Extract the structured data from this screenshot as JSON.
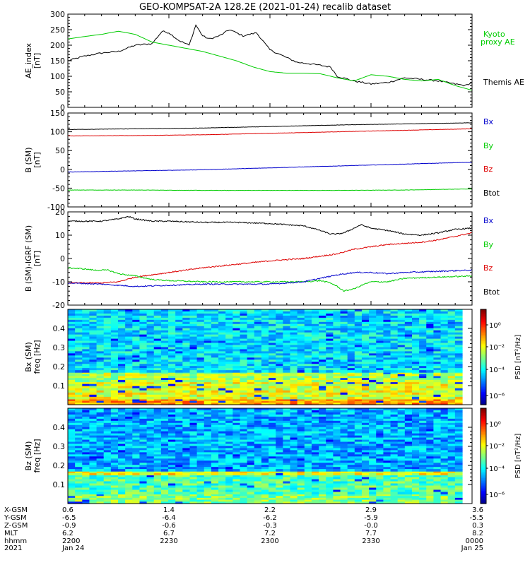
{
  "title": "GEO-KOMPSAT-2A 128.2E (2021-01-24) recalib dataset",
  "colors": {
    "black": "#000000",
    "red": "#dd0000",
    "green": "#00cc00",
    "blue": "#0000cc",
    "axis": "#000000"
  },
  "chart_data": [
    {
      "type": "line",
      "id": "ae",
      "ylabel": [
        "AE_index",
        "[nT]"
      ],
      "ylim": [
        0,
        300
      ],
      "yticks": [
        0,
        50,
        100,
        150,
        200,
        250,
        300
      ],
      "xlim": [
        0,
        120
      ],
      "series": [
        {
          "name": "Themis AE",
          "color": "#000000",
          "x": [
            0,
            5,
            10,
            15,
            20,
            25,
            28,
            30,
            33,
            36,
            38,
            40,
            42,
            45,
            48,
            52,
            56,
            60,
            64,
            68,
            72,
            75,
            78,
            80,
            85,
            90,
            95,
            100,
            105,
            110,
            115,
            118,
            120
          ],
          "y": [
            150,
            165,
            175,
            180,
            200,
            205,
            245,
            240,
            215,
            200,
            265,
            230,
            220,
            230,
            250,
            230,
            240,
            185,
            165,
            145,
            140,
            135,
            130,
            100,
            85,
            75,
            80,
            95,
            90,
            85,
            75,
            70,
            80
          ]
        },
        {
          "name": "Kyoto proxy AE",
          "color": "#00cc00",
          "x": [
            0,
            5,
            10,
            15,
            20,
            25,
            30,
            35,
            40,
            45,
            50,
            55,
            60,
            65,
            70,
            75,
            80,
            85,
            90,
            95,
            100,
            105,
            110,
            115,
            120
          ],
          "y": [
            220,
            228,
            235,
            245,
            235,
            210,
            200,
            190,
            180,
            165,
            150,
            130,
            115,
            110,
            110,
            108,
            95,
            85,
            105,
            100,
            90,
            85,
            90,
            70,
            55
          ]
        }
      ],
      "legend": [
        "Kyoto",
        "proxy AE",
        "Themis AE"
      ]
    },
    {
      "type": "line",
      "id": "bsm",
      "ylabel": [
        "B (SM)",
        "[nT]"
      ],
      "ylim": [
        -100,
        150
      ],
      "yticks": [
        -100,
        -50,
        0,
        50,
        100,
        150
      ],
      "xlim": [
        0,
        120
      ],
      "series": [
        {
          "name": "Bx",
          "color": "#000000",
          "x": [
            0,
            20,
            40,
            60,
            80,
            100,
            120
          ],
          "y": [
            106,
            108,
            110,
            114,
            118,
            121,
            124
          ]
        },
        {
          "name": "By",
          "color": "#00cc00",
          "x": [
            0,
            20,
            40,
            60,
            80,
            100,
            120
          ],
          "y": [
            -55,
            -55,
            -56,
            -56,
            -56,
            -55,
            -52
          ]
        },
        {
          "name": "Bz",
          "color": "#dd0000",
          "x": [
            0,
            20,
            40,
            60,
            80,
            100,
            120
          ],
          "y": [
            89,
            90,
            92,
            96,
            100,
            104,
            108
          ]
        },
        {
          "name": "Btot",
          "color": "#0000cc",
          "x": [
            0,
            20,
            40,
            60,
            80,
            100,
            120
          ],
          "y": [
            -7,
            -4,
            -1,
            4,
            9,
            14,
            19
          ]
        }
      ],
      "legend": [
        "Bx",
        "By",
        "Bz",
        "Btot"
      ]
    },
    {
      "type": "line",
      "id": "bdiff",
      "ylabel": [
        "B (SM)-IGRF (SM)",
        "[nT]"
      ],
      "ylim": [
        -20,
        20
      ],
      "yticks": [
        -20,
        -10,
        0,
        10,
        20
      ],
      "xlim": [
        0,
        120
      ],
      "series": [
        {
          "name": "Bx",
          "color": "#000000",
          "x": [
            0,
            10,
            15,
            18,
            20,
            25,
            30,
            40,
            50,
            60,
            70,
            75,
            78,
            80,
            82,
            85,
            87,
            90,
            95,
            100,
            105,
            110,
            115,
            120
          ],
          "y": [
            16,
            16,
            17,
            18,
            17,
            16,
            16,
            15.5,
            15.5,
            15,
            14,
            12,
            10.5,
            10.5,
            11,
            13,
            14.5,
            13,
            12,
            10.5,
            10,
            11,
            12.5,
            13
          ]
        },
        {
          "name": "Bz",
          "color": "#dd0000",
          "x": [
            0,
            10,
            15,
            20,
            30,
            40,
            50,
            60,
            70,
            75,
            80,
            85,
            90,
            95,
            100,
            105,
            110,
            115,
            120
          ],
          "y": [
            -10.5,
            -10.5,
            -10,
            -8,
            -6,
            -4,
            -2.5,
            -1,
            0,
            1,
            2,
            4,
            5,
            6,
            6.5,
            7,
            8,
            9.5,
            11
          ]
        },
        {
          "name": "By",
          "color": "#00cc00",
          "x": [
            0,
            5,
            8,
            12,
            15,
            20,
            25,
            30,
            40,
            50,
            60,
            65,
            70,
            75,
            78,
            80,
            82,
            85,
            88,
            90,
            95,
            100,
            110,
            120
          ],
          "y": [
            -4,
            -4.5,
            -5,
            -5,
            -6.5,
            -7.5,
            -9,
            -9.5,
            -10,
            -10,
            -10,
            -10,
            -10,
            -9.5,
            -10.5,
            -12,
            -14,
            -13,
            -11,
            -10,
            -10,
            -8.5,
            -8,
            -7.5
          ]
        },
        {
          "name": "Btot",
          "color": "#0000cc",
          "x": [
            0,
            10,
            15,
            20,
            30,
            40,
            50,
            60,
            70,
            75,
            80,
            85,
            90,
            95,
            100,
            110,
            120
          ],
          "y": [
            -10.5,
            -11,
            -11.5,
            -12,
            -11.5,
            -11,
            -11,
            -11,
            -10,
            -8.5,
            -7,
            -6,
            -6,
            -6.5,
            -6,
            -5.5,
            -5
          ]
        }
      ],
      "legend": [
        "Bx",
        "By",
        "Bz",
        "Btot"
      ]
    },
    {
      "type": "heatmap",
      "id": "bx_psd",
      "ylabel": [
        "Bx (SM)",
        "freq [Hz]"
      ],
      "ylim": [
        0,
        0.5
      ],
      "yticks": [
        0.1,
        0.2,
        0.3,
        0.4
      ],
      "colorbar": {
        "label": "PSD [nT²/Hz]",
        "ticks": [
          "10⁰",
          "10⁻²",
          "10⁻⁴",
          "10⁻⁶"
        ]
      },
      "bands": [
        {
          "from": 0.0,
          "to": 0.03,
          "level": 0.72
        },
        {
          "from": 0.03,
          "to": 0.12,
          "level": 0.6
        },
        {
          "from": 0.12,
          "to": 0.17,
          "level": 0.55
        },
        {
          "from": 0.17,
          "to": 0.5,
          "level": 0.35
        }
      ]
    },
    {
      "type": "heatmap",
      "id": "bz_psd",
      "ylabel": [
        "Bz (SM)",
        "freq [Hz]"
      ],
      "ylim": [
        0,
        0.5
      ],
      "yticks": [
        0.1,
        0.2,
        0.3,
        0.4
      ],
      "colorbar": {
        "label": "PSD [nT²/Hz]",
        "ticks": [
          "10⁰",
          "10⁻²",
          "10⁻⁴",
          "10⁻⁶"
        ]
      },
      "bands": [
        {
          "from": 0.0,
          "to": 0.05,
          "level": 0.5
        },
        {
          "from": 0.05,
          "to": 0.15,
          "level": 0.45
        },
        {
          "from": 0.15,
          "to": 0.17,
          "level": 0.62
        },
        {
          "from": 0.17,
          "to": 0.5,
          "level": 0.3
        }
      ]
    }
  ],
  "x_axis": {
    "row_labels": [
      "X-GSM",
      "Y-GSM",
      "Z-GSM",
      "MLT",
      "hhmm",
      "2021"
    ],
    "columns": [
      {
        "x": 0,
        "vals": [
          "0.6",
          "-6.5",
          "-0.9",
          "6.2",
          "2200",
          "Jan 24"
        ]
      },
      {
        "x": 30,
        "vals": [
          "1.4",
          "-6.4",
          "-0.6",
          "6.7",
          "2230",
          ""
        ]
      },
      {
        "x": 60,
        "vals": [
          "2.2",
          "-6.2",
          "-0.3",
          "7.2",
          "2300",
          ""
        ]
      },
      {
        "x": 90,
        "vals": [
          "2.9",
          "-5.9",
          "-0.0",
          "7.7",
          "2330",
          ""
        ]
      },
      {
        "x": 120,
        "vals": [
          "3.6",
          "-5.5",
          "0.3",
          "8.2",
          "0000",
          "Jan 25"
        ]
      }
    ]
  }
}
